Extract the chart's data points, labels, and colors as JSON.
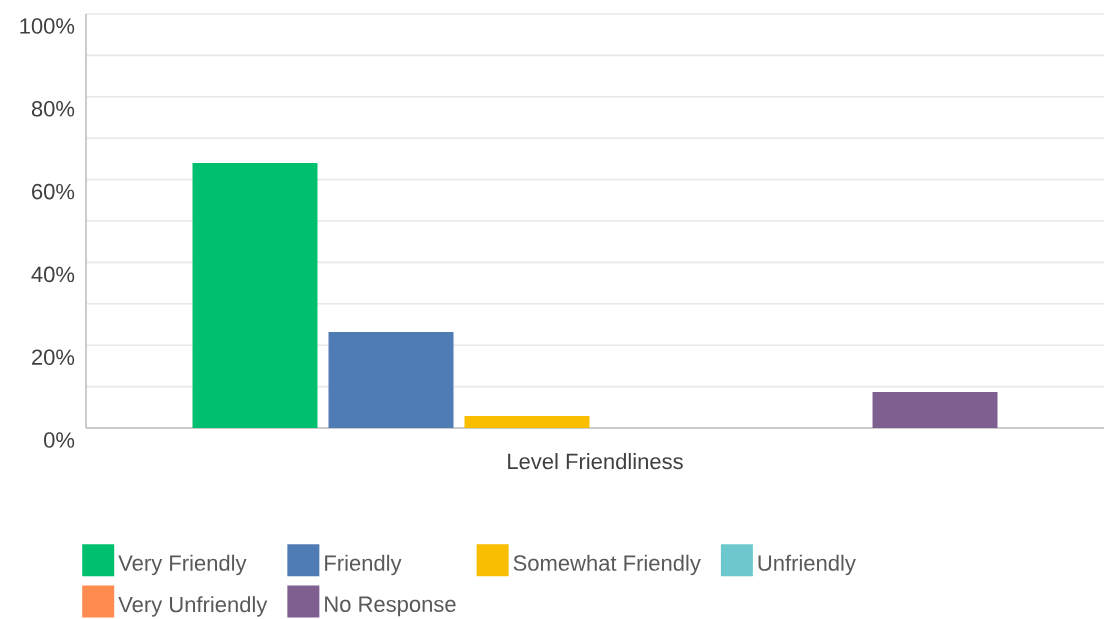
{
  "chart_data": {
    "type": "bar",
    "categories": [
      "Level Friendliness"
    ],
    "xlabel": null,
    "series": [
      {
        "name": "Very Friendly",
        "color": "#00bf6f",
        "values": [
          64
        ]
      },
      {
        "name": "Friendly",
        "color": "#507cb6",
        "values": [
          23.2
        ]
      },
      {
        "name": "Somewhat Friendly",
        "color": "#f9be00",
        "values": [
          2.9
        ]
      },
      {
        "name": "Unfriendly",
        "color": "#6cc8cc",
        "values": [
          0
        ]
      },
      {
        "name": "Very Unfriendly",
        "color": "#ff8b4f",
        "values": [
          0
        ]
      },
      {
        "name": "No Response",
        "color": "#7f5f90",
        "values": [
          8.7
        ]
      }
    ],
    "ylim": [
      0,
      100
    ],
    "yticks": [
      {
        "value": 0,
        "label": "0%"
      },
      {
        "value": 10,
        "label": null
      },
      {
        "value": 20,
        "label": "20%"
      },
      {
        "value": 30,
        "label": null
      },
      {
        "value": 40,
        "label": "40%"
      },
      {
        "value": 50,
        "label": null
      },
      {
        "value": 60,
        "label": "60%"
      },
      {
        "value": 70,
        "label": null
      },
      {
        "value": 80,
        "label": "80%"
      },
      {
        "value": 90,
        "label": null
      },
      {
        "value": 100,
        "label": "100%"
      }
    ],
    "grid": "y",
    "legend": "bottom"
  }
}
